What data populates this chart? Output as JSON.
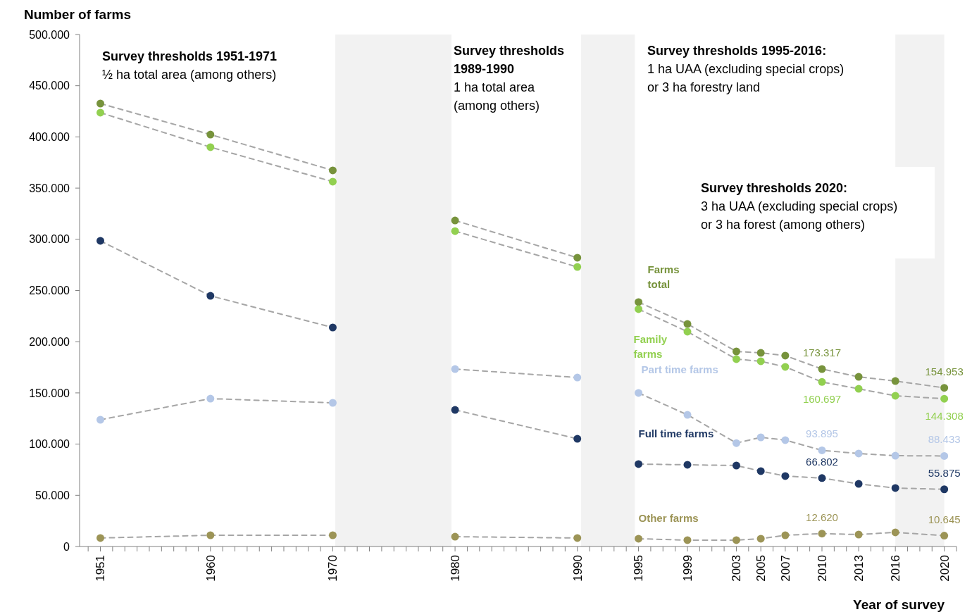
{
  "chart_data": {
    "type": "line",
    "ylabel": "Number of farms",
    "xlabel": "Year of survey",
    "x": [
      1951,
      1960,
      1970,
      1980,
      1990,
      1995,
      1999,
      2003,
      2005,
      2007,
      2010,
      2013,
      2016,
      2020
    ],
    "xlim": [
      1949.3,
      2021
    ],
    "xticks": [
      {
        "value": 1950,
        "label": null
      },
      1951,
      {
        "value": 1952,
        "label": null
      },
      {
        "value": 1953,
        "label": null
      },
      {
        "value": 1954,
        "label": null
      },
      {
        "value": 1955,
        "label": null
      },
      {
        "value": 1956,
        "label": null
      },
      {
        "value": 1957,
        "label": null
      },
      {
        "value": 1958,
        "label": null
      },
      {
        "value": 1959,
        "label": null
      },
      1960,
      {
        "value": 1961,
        "label": null
      },
      {
        "value": 1962,
        "label": null
      },
      {
        "value": 1963,
        "label": null
      },
      {
        "value": 1964,
        "label": null
      },
      {
        "value": 1965,
        "label": null
      },
      {
        "value": 1966,
        "label": null
      },
      {
        "value": 1967,
        "label": null
      },
      {
        "value": 1968,
        "label": null
      },
      {
        "value": 1969,
        "label": null
      },
      1970,
      {
        "value": 1971,
        "label": null
      },
      {
        "value": 1972,
        "label": null
      },
      {
        "value": 1973,
        "label": null
      },
      {
        "value": 1974,
        "label": null
      },
      {
        "value": 1975,
        "label": null
      },
      {
        "value": 1976,
        "label": null
      },
      {
        "value": 1977,
        "label": null
      },
      {
        "value": 1978,
        "label": null
      },
      {
        "value": 1979,
        "label": null
      },
      1980,
      {
        "value": 1981,
        "label": null
      },
      {
        "value": 1982,
        "label": null
      },
      {
        "value": 1983,
        "label": null
      },
      {
        "value": 1984,
        "label": null
      },
      {
        "value": 1985,
        "label": null
      },
      {
        "value": 1986,
        "label": null
      },
      {
        "value": 1987,
        "label": null
      },
      {
        "value": 1988,
        "label": null
      },
      {
        "value": 1989,
        "label": null
      },
      1990,
      {
        "value": 1991,
        "label": null
      },
      {
        "value": 1992,
        "label": null
      },
      {
        "value": 1993,
        "label": null
      },
      {
        "value": 1994,
        "label": null
      },
      1995,
      {
        "value": 1996,
        "label": null
      },
      {
        "value": 1997,
        "label": null
      },
      {
        "value": 1998,
        "label": null
      },
      1999,
      {
        "value": 2000,
        "label": null
      },
      {
        "value": 2001,
        "label": null
      },
      {
        "value": 2002,
        "label": null
      },
      2003,
      {
        "value": 2004,
        "label": null
      },
      2005,
      {
        "value": 2006,
        "label": null
      },
      2007,
      {
        "value": 2008,
        "label": null
      },
      {
        "value": 2009,
        "label": null
      },
      2010,
      {
        "value": 2011,
        "label": null
      },
      {
        "value": 2012,
        "label": null
      },
      2013,
      {
        "value": 2014,
        "label": null
      },
      {
        "value": 2015,
        "label": null
      },
      2016,
      {
        "value": 2017,
        "label": null
      },
      {
        "value": 2018,
        "label": null
      },
      {
        "value": 2019,
        "label": null
      },
      2020,
      {
        "value": 2021,
        "label": null
      }
    ],
    "ylim": [
      0,
      500000
    ],
    "yticks": [
      {
        "value": 0,
        "label": "0"
      },
      {
        "value": 50000,
        "label": "50.000"
      },
      {
        "value": 100000,
        "label": "100.000"
      },
      {
        "value": 150000,
        "label": "150.000"
      },
      {
        "value": 200000,
        "label": "200.000"
      },
      {
        "value": 250000,
        "label": "250.000"
      },
      {
        "value": 300000,
        "label": "300.000"
      },
      {
        "value": 350000,
        "label": "350.000"
      },
      {
        "value": 400000,
        "label": "400.000"
      },
      {
        "value": 450000,
        "label": "450.000"
      },
      {
        "value": 500000,
        "label": "500.000"
      }
    ],
    "grid": false,
    "marker": "circle",
    "line_style": "dashed",
    "series": [
      {
        "name": "Farms total",
        "color": "#77933c",
        "values": [
          432600,
          402300,
          367300,
          318400,
          282000,
          238700,
          217300,
          190500,
          189100,
          186400,
          173317,
          165700,
          161600,
          154953
        ],
        "value_labels": [
          null,
          null,
          null,
          null,
          null,
          null,
          null,
          null,
          null,
          null,
          "173.317",
          null,
          null,
          "154.953"
        ]
      },
      {
        "name": "Family farms",
        "color": "#92d050",
        "values": [
          423700,
          390000,
          356300,
          308000,
          273000,
          231800,
          209800,
          183000,
          180900,
          175400,
          160697,
          154000,
          147200,
          144308
        ],
        "value_labels": [
          null,
          null,
          null,
          null,
          null,
          null,
          null,
          null,
          null,
          null,
          "160.697",
          null,
          null,
          "144.308"
        ]
      },
      {
        "name": "Part time farms",
        "color": "#b4c7e7",
        "values": [
          123800,
          144400,
          140300,
          173300,
          165000,
          150000,
          128600,
          101000,
          106600,
          103900,
          93895,
          90800,
          88700,
          88433
        ],
        "value_labels": [
          null,
          null,
          null,
          null,
          null,
          null,
          null,
          null,
          null,
          null,
          "93.895",
          null,
          null,
          "88.433"
        ]
      },
      {
        "name": "Full time farms",
        "color": "#1f3864",
        "values": [
          298500,
          244800,
          213900,
          133400,
          105200,
          80500,
          79800,
          79100,
          73600,
          68800,
          66802,
          61200,
          57100,
          55875
        ],
        "value_labels": [
          null,
          null,
          null,
          null,
          null,
          null,
          null,
          null,
          null,
          null,
          "66.802",
          null,
          null,
          "55.875"
        ]
      },
      {
        "name": "Other farms",
        "color": "#9c9456",
        "values": [
          8300,
          11000,
          11000,
          9600,
          8300,
          7600,
          6200,
          6200,
          7600,
          11000,
          12620,
          11700,
          13800,
          10645
        ],
        "value_labels": [
          null,
          null,
          null,
          null,
          null,
          null,
          null,
          null,
          null,
          null,
          "12.620",
          null,
          null,
          "10.645"
        ]
      }
    ],
    "bands": [
      {
        "axis": "x",
        "from": 1970.2,
        "to": 1979.7,
        "color": "#f2f2f2"
      },
      {
        "axis": "x",
        "from": 1990.3,
        "to": 1994.7,
        "color": "#f2f2f2"
      },
      {
        "axis": "x",
        "from": 2016,
        "to": 2020,
        "color": "#f2f2f2"
      }
    ],
    "annotations": [
      "Survey thresholds 1951-1971\n½ ha total area (among others)",
      "Survey thresholds\n1989-1990\n1 ha total area\n(among others)",
      "Survey thresholds 1995-2016:\n1 ha UAA (excluding special crops)\nor 3 ha forestry land",
      "Survey thresholds 2020:\n3 ha UAA (excluding special crops)\nor 3 ha forest (among others)"
    ]
  }
}
